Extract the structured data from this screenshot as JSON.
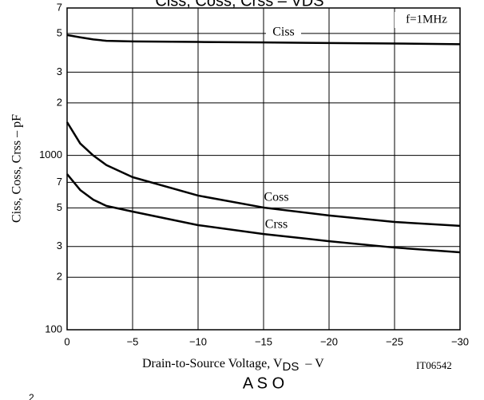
{
  "chart_data": {
    "type": "line",
    "title": "Ciss, Coss, Crss – VDS",
    "x_label": "Drain-to-Source Voltage, V",
    "x_label_sub": "DS",
    "x_label_unit": "–  V",
    "y_label": "Ciss,  Coss,  Crss  –  pF",
    "annotation": "f=1MHz",
    "figure_id": "IT06542",
    "footer": "A S O",
    "footer_tick": "2",
    "log_y": true,
    "grid": true,
    "xlim": [
      0,
      -30
    ],
    "xticks": [
      0,
      {
        "value": -5,
        "label": "−5"
      },
      {
        "value": -10,
        "label": "−10"
      },
      {
        "value": -15,
        "label": "−15"
      },
      {
        "value": -20,
        "label": "−20"
      },
      {
        "value": -25,
        "label": "−25"
      },
      {
        "value": -30,
        "label": "−30"
      }
    ],
    "ylim": [
      100,
      7000
    ],
    "yticks": [
      100,
      {
        "value": 200,
        "label": "2"
      },
      {
        "value": 300,
        "label": "3"
      },
      {
        "value": 500,
        "label": "5"
      },
      {
        "value": 700,
        "label": "7"
      },
      1000,
      {
        "value": 2000,
        "label": "2"
      },
      {
        "value": 3000,
        "label": "3"
      },
      {
        "value": 5000,
        "label": "5"
      },
      {
        "value": 7000,
        "label": "7"
      }
    ],
    "x": [
      0,
      -1,
      -2,
      -3,
      -5,
      -10,
      -15,
      -20,
      -25,
      -30
    ],
    "series": [
      {
        "name": "Ciss",
        "color": "#000000",
        "values": [
          4900,
          4750,
          4620,
          4540,
          4500,
          4470,
          4440,
          4410,
          4380,
          4340
        ]
      },
      {
        "name": "Coss",
        "color": "#000000",
        "values": [
          1550,
          1170,
          998,
          880,
          750,
          588,
          502,
          452,
          415,
          394
        ]
      },
      {
        "name": "Crss",
        "color": "#000000",
        "values": [
          781,
          633,
          557,
          513,
          476,
          398,
          354,
          322,
          296,
          278
        ]
      }
    ]
  }
}
